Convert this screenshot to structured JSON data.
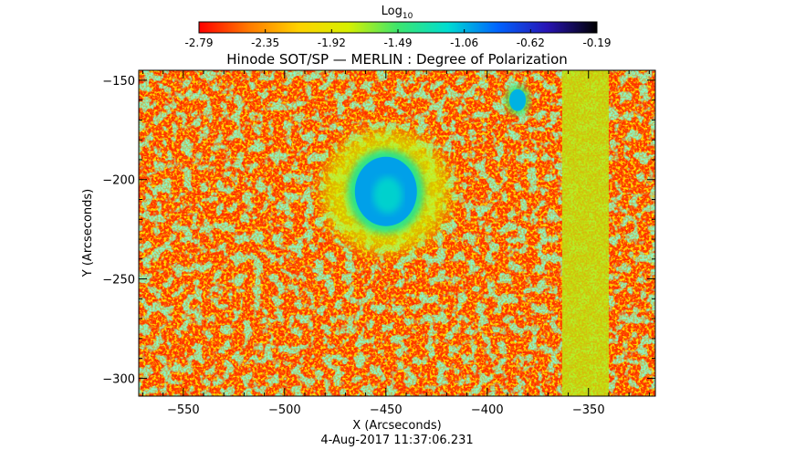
{
  "chart_data": {
    "type": "heatmap",
    "title": "Hinode SOT/SP — MERLIN : Degree of Polarization",
    "xlabel": "X (Arcseconds)",
    "ylabel": "Y (Arcseconds)",
    "xlim": [
      -572,
      -317
    ],
    "ylim": [
      -309,
      -145
    ],
    "x_ticks": [
      -550,
      -500,
      -450,
      -400,
      -350
    ],
    "y_ticks": [
      -150,
      -200,
      -250,
      -300
    ],
    "colorbar": {
      "title_base": "Log",
      "title_sub": "10",
      "ticks": [
        "-2.79",
        "-2.35",
        "-1.92",
        "-1.49",
        "-1.06",
        "-0.62",
        "-0.19"
      ],
      "range": [
        -2.79,
        -0.19
      ],
      "colormap": [
        "#ff0000",
        "#ff7a00",
        "#ffd200",
        "#d7f000",
        "#3ce66e",
        "#00ddd2",
        "#0064ff",
        "#2814b4",
        "#000000"
      ]
    },
    "features": [
      {
        "kind": "sunspot",
        "x": -450,
        "y": -206,
        "value": -1.0
      },
      {
        "kind": "pore",
        "x": -385,
        "y": -160,
        "value": -1.05
      },
      {
        "kind": "band",
        "x_from": -363,
        "x_to": -340,
        "value": -1.75
      }
    ],
    "background_value": -2.65
  },
  "timestamp": "4-Aug-2017 11:37:06.231"
}
